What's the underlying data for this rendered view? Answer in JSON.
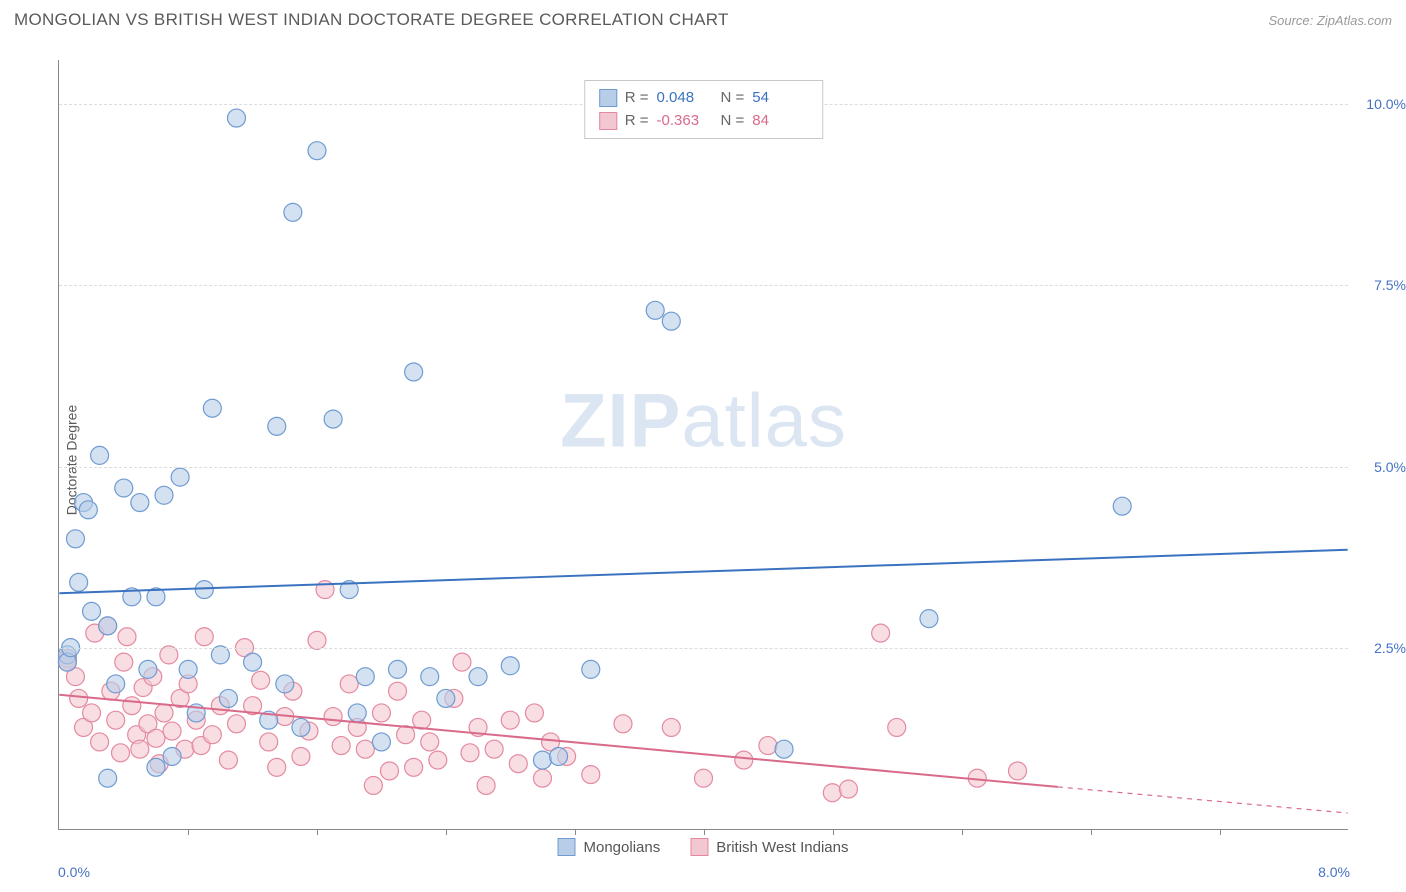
{
  "title": "MONGOLIAN VS BRITISH WEST INDIAN DOCTORATE DEGREE CORRELATION CHART",
  "source": "Source: ZipAtlas.com",
  "watermark_bold": "ZIP",
  "watermark_rest": "atlas",
  "y_axis_label": "Doctorate Degree",
  "x_origin": "0.0%",
  "x_max": "8.0%",
  "legend": {
    "series1": "Mongolians",
    "series2": "British West Indians"
  },
  "stats": {
    "r_label": "R =",
    "n_label": "N =",
    "series1": {
      "r": "0.048",
      "n": "54"
    },
    "series2": {
      "r": "-0.363",
      "n": "84"
    }
  },
  "chart": {
    "type": "scatter",
    "xlim": [
      0,
      8
    ],
    "ylim": [
      0,
      10.6
    ],
    "y_ticks": [
      2.5,
      5.0,
      7.5,
      10.0
    ],
    "y_tick_labels": [
      "2.5%",
      "5.0%",
      "7.5%",
      "10.0%"
    ],
    "x_tick_positions": [
      0.8,
      1.6,
      2.4,
      3.2,
      4.0,
      4.8,
      5.6,
      6.4,
      7.2
    ],
    "grid_color": "#dcdcdc",
    "background_color": "#ffffff",
    "series": [
      {
        "name": "Mongolians",
        "fill": "#b8cde8",
        "stroke": "#6f9bd1",
        "fill_opacity": 0.6,
        "marker_size": 9,
        "trend": {
          "x1": 0,
          "y1": 3.25,
          "x2": 8,
          "y2": 3.85,
          "color": "#3a72c0",
          "width": 2
        },
        "points": [
          [
            0.05,
            2.4
          ],
          [
            0.05,
            2.3
          ],
          [
            0.07,
            2.5
          ],
          [
            0.1,
            4.0
          ],
          [
            0.12,
            3.4
          ],
          [
            0.15,
            4.5
          ],
          [
            0.18,
            4.4
          ],
          [
            0.2,
            3.0
          ],
          [
            0.25,
            5.15
          ],
          [
            0.3,
            2.8
          ],
          [
            0.35,
            2.0
          ],
          [
            0.4,
            4.7
          ],
          [
            0.45,
            3.2
          ],
          [
            0.5,
            4.5
          ],
          [
            0.55,
            2.2
          ],
          [
            0.6,
            3.2
          ],
          [
            0.65,
            4.6
          ],
          [
            0.7,
            1.0
          ],
          [
            0.75,
            4.85
          ],
          [
            0.8,
            2.2
          ],
          [
            0.85,
            1.6
          ],
          [
            0.9,
            3.3
          ],
          [
            0.95,
            5.8
          ],
          [
            1.0,
            2.4
          ],
          [
            1.05,
            1.8
          ],
          [
            1.1,
            9.8
          ],
          [
            1.2,
            2.3
          ],
          [
            1.3,
            1.5
          ],
          [
            1.35,
            5.55
          ],
          [
            1.4,
            2.0
          ],
          [
            1.45,
            8.5
          ],
          [
            1.5,
            1.4
          ],
          [
            1.6,
            9.35
          ],
          [
            1.7,
            5.65
          ],
          [
            1.8,
            3.3
          ],
          [
            1.85,
            1.6
          ],
          [
            1.9,
            2.1
          ],
          [
            2.0,
            1.2
          ],
          [
            2.1,
            2.2
          ],
          [
            2.2,
            6.3
          ],
          [
            2.3,
            2.1
          ],
          [
            2.4,
            1.8
          ],
          [
            2.6,
            2.1
          ],
          [
            2.8,
            2.25
          ],
          [
            3.0,
            0.95
          ],
          [
            3.1,
            1.0
          ],
          [
            3.3,
            2.2
          ],
          [
            3.7,
            7.15
          ],
          [
            3.8,
            7.0
          ],
          [
            4.5,
            1.1
          ],
          [
            5.4,
            2.9
          ],
          [
            6.6,
            4.45
          ],
          [
            0.3,
            0.7
          ],
          [
            0.6,
            0.85
          ]
        ]
      },
      {
        "name": "British West Indians",
        "fill": "#f3c7d1",
        "stroke": "#e48aa0",
        "fill_opacity": 0.6,
        "marker_size": 9,
        "trend": {
          "x1": 0,
          "y1": 1.85,
          "x2": 6.2,
          "y2": 0.58,
          "color": "#d96a8a",
          "width": 2
        },
        "trend_dash": {
          "x1": 6.2,
          "y1": 0.58,
          "x2": 8,
          "y2": 0.22
        },
        "points": [
          [
            0.05,
            2.35
          ],
          [
            0.05,
            2.3
          ],
          [
            0.1,
            2.1
          ],
          [
            0.12,
            1.8
          ],
          [
            0.15,
            1.4
          ],
          [
            0.2,
            1.6
          ],
          [
            0.22,
            2.7
          ],
          [
            0.25,
            1.2
          ],
          [
            0.3,
            2.8
          ],
          [
            0.32,
            1.9
          ],
          [
            0.35,
            1.5
          ],
          [
            0.38,
            1.05
          ],
          [
            0.4,
            2.3
          ],
          [
            0.42,
            2.65
          ],
          [
            0.45,
            1.7
          ],
          [
            0.48,
            1.3
          ],
          [
            0.5,
            1.1
          ],
          [
            0.52,
            1.95
          ],
          [
            0.55,
            1.45
          ],
          [
            0.58,
            2.1
          ],
          [
            0.6,
            1.25
          ],
          [
            0.62,
            0.9
          ],
          [
            0.65,
            1.6
          ],
          [
            0.68,
            2.4
          ],
          [
            0.7,
            1.35
          ],
          [
            0.75,
            1.8
          ],
          [
            0.78,
            1.1
          ],
          [
            0.8,
            2.0
          ],
          [
            0.85,
            1.5
          ],
          [
            0.88,
            1.15
          ],
          [
            0.9,
            2.65
          ],
          [
            0.95,
            1.3
          ],
          [
            1.0,
            1.7
          ],
          [
            1.05,
            0.95
          ],
          [
            1.1,
            1.45
          ],
          [
            1.15,
            2.5
          ],
          [
            1.2,
            1.7
          ],
          [
            1.25,
            2.05
          ],
          [
            1.3,
            1.2
          ],
          [
            1.35,
            0.85
          ],
          [
            1.4,
            1.55
          ],
          [
            1.45,
            1.9
          ],
          [
            1.5,
            1.0
          ],
          [
            1.55,
            1.35
          ],
          [
            1.6,
            2.6
          ],
          [
            1.65,
            3.3
          ],
          [
            1.7,
            1.55
          ],
          [
            1.75,
            1.15
          ],
          [
            1.8,
            2.0
          ],
          [
            1.85,
            1.4
          ],
          [
            1.9,
            1.1
          ],
          [
            1.95,
            0.6
          ],
          [
            2.0,
            1.6
          ],
          [
            2.05,
            0.8
          ],
          [
            2.1,
            1.9
          ],
          [
            2.15,
            1.3
          ],
          [
            2.2,
            0.85
          ],
          [
            2.25,
            1.5
          ],
          [
            2.3,
            1.2
          ],
          [
            2.35,
            0.95
          ],
          [
            2.45,
            1.8
          ],
          [
            2.5,
            2.3
          ],
          [
            2.55,
            1.05
          ],
          [
            2.6,
            1.4
          ],
          [
            2.65,
            0.6
          ],
          [
            2.7,
            1.1
          ],
          [
            2.8,
            1.5
          ],
          [
            2.85,
            0.9
          ],
          [
            3.0,
            0.7
          ],
          [
            3.05,
            1.2
          ],
          [
            3.15,
            1.0
          ],
          [
            3.3,
            0.75
          ],
          [
            3.5,
            1.45
          ],
          [
            3.8,
            1.4
          ],
          [
            4.0,
            0.7
          ],
          [
            4.25,
            0.95
          ],
          [
            4.8,
            0.5
          ],
          [
            4.9,
            0.55
          ],
          [
            5.1,
            2.7
          ],
          [
            5.2,
            1.4
          ],
          [
            5.7,
            0.7
          ],
          [
            5.95,
            0.8
          ],
          [
            4.4,
            1.15
          ],
          [
            2.95,
            1.6
          ]
        ]
      }
    ]
  }
}
